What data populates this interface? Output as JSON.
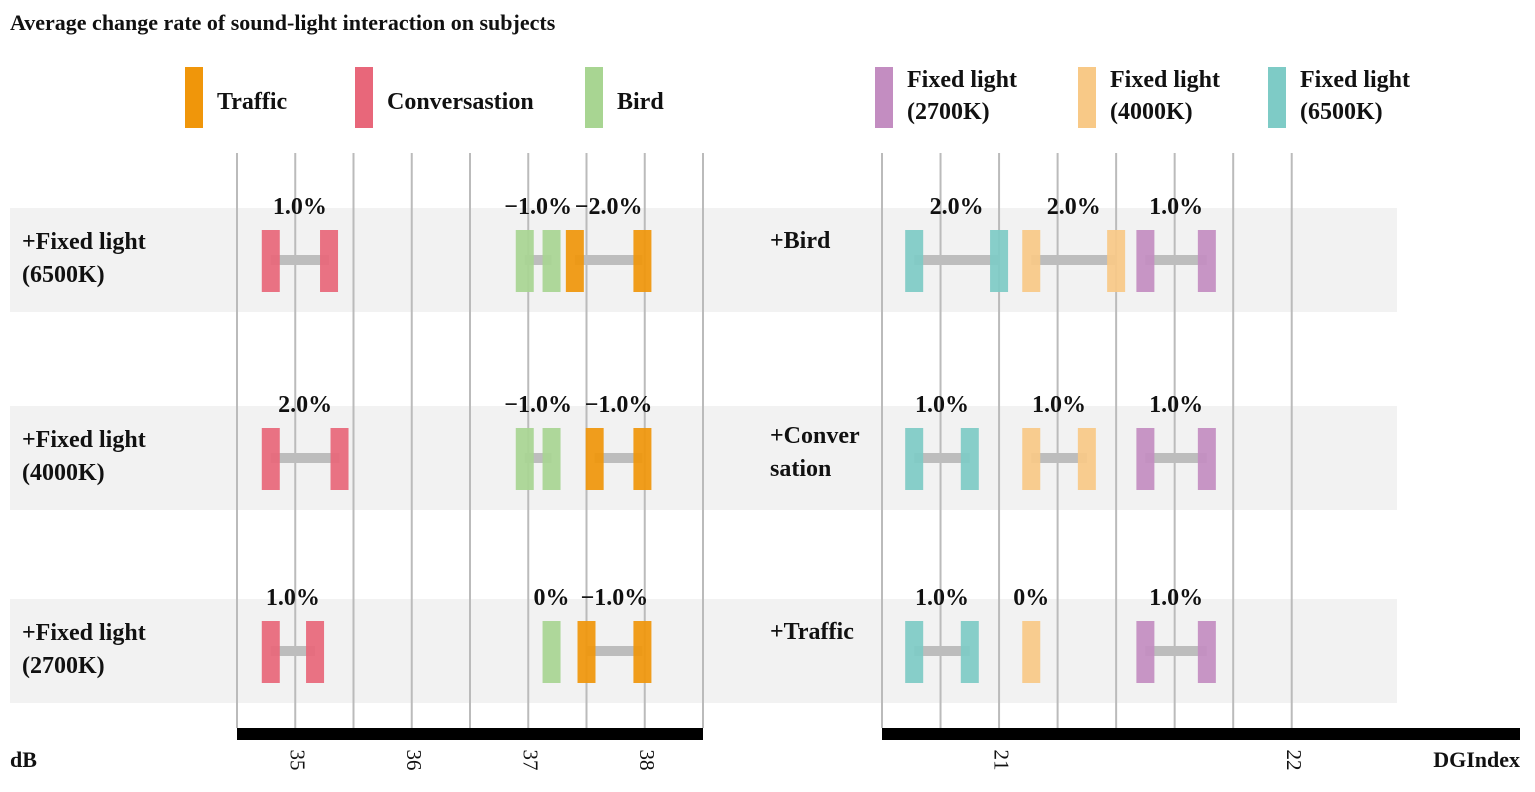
{
  "title": "Average change rate of sound-light interaction on subjects",
  "colors": {
    "Traffic": "#F0960A",
    "Conversastion": "#E8677A",
    "Bird": "#A8D592",
    "Fixed light (2700K)": "#C38DC1",
    "Fixed light (4000K)": "#F8C987",
    "Fixed light (6500K)": "#7ECBC6",
    "connector": "#BDBDBD",
    "band": "#F2F2F2",
    "grid": "#BBBBBB"
  },
  "chart_data": [
    {
      "type": "dumbbell",
      "xlabel": "dB",
      "xlim": [
        34.5,
        38.5
      ],
      "xticks": [
        35,
        36,
        37,
        38
      ],
      "grid_step": 0.5,
      "legend": [
        {
          "key": "Traffic",
          "lines": [
            "Traffic"
          ]
        },
        {
          "key": "Conversastion",
          "lines": [
            "Conversastion"
          ]
        },
        {
          "key": "Bird",
          "lines": [
            "Bird"
          ]
        }
      ],
      "rows": [
        {
          "label": [
            "+Fixed light",
            "(6500K)"
          ],
          "series": [
            {
              "name": "Conversastion",
              "values": [
                34.79,
                35.29
              ],
              "rate": "1.0%"
            },
            {
              "name": "Bird",
              "values": [
                36.97,
                37.2
              ],
              "rate": "−1.0%"
            },
            {
              "name": "Traffic",
              "values": [
                37.4,
                37.98
              ],
              "rate": "−2.0%"
            }
          ]
        },
        {
          "label": [
            "+Fixed light",
            "(4000K)"
          ],
          "series": [
            {
              "name": "Conversastion",
              "values": [
                34.79,
                35.38
              ],
              "rate": "2.0%"
            },
            {
              "name": "Bird",
              "values": [
                36.97,
                37.2
              ],
              "rate": "−1.0%"
            },
            {
              "name": "Traffic",
              "values": [
                37.57,
                37.98
              ],
              "rate": "−1.0%"
            }
          ]
        },
        {
          "label": [
            "+Fixed light",
            "(2700K)"
          ],
          "series": [
            {
              "name": "Conversastion",
              "values": [
                34.79,
                35.17
              ],
              "rate": "1.0%"
            },
            {
              "name": "Bird",
              "values": [
                37.2,
                37.2
              ],
              "rate": "0%"
            },
            {
              "name": "Traffic",
              "values": [
                37.5,
                37.98
              ],
              "rate": "−1.0%"
            }
          ]
        }
      ]
    },
    {
      "type": "dumbbell",
      "xlabel": "DGIndex",
      "xlim": [
        20.6,
        22.78
      ],
      "xticks": [
        21,
        22
      ],
      "grid_step": 0.2,
      "grid_max": 22.0,
      "legend": [
        {
          "key": "Fixed light (2700K)",
          "lines": [
            "Fixed light",
            "(2700K)"
          ]
        },
        {
          "key": "Fixed light (4000K)",
          "lines": [
            "Fixed light",
            "(4000K)"
          ]
        },
        {
          "key": "Fixed light (6500K)",
          "lines": [
            "Fixed light",
            "(6500K)"
          ]
        }
      ],
      "rows": [
        {
          "label": [
            "+Bird"
          ],
          "series": [
            {
              "name": "Fixed light (6500K)",
              "values": [
                20.71,
                21.0
              ],
              "rate": "2.0%"
            },
            {
              "name": "Fixed light (4000K)",
              "values": [
                21.11,
                21.4
              ],
              "rate": "2.0%"
            },
            {
              "name": "Fixed light (2700K)",
              "values": [
                21.5,
                21.71
              ],
              "rate": "1.0%"
            }
          ]
        },
        {
          "label": [
            "+Conver",
            "sation"
          ],
          "series": [
            {
              "name": "Fixed light (6500K)",
              "values": [
                20.71,
                20.9
              ],
              "rate": "1.0%"
            },
            {
              "name": "Fixed light (4000K)",
              "values": [
                21.11,
                21.3
              ],
              "rate": "1.0%"
            },
            {
              "name": "Fixed light (2700K)",
              "values": [
                21.5,
                21.71
              ],
              "rate": "1.0%"
            }
          ]
        },
        {
          "label": [
            "+Traffic"
          ],
          "series": [
            {
              "name": "Fixed light (6500K)",
              "values": [
                20.71,
                20.9
              ],
              "rate": "1.0%"
            },
            {
              "name": "Fixed light (4000K)",
              "values": [
                21.11,
                21.11
              ],
              "rate": "0%"
            },
            {
              "name": "Fixed light (2700K)",
              "values": [
                21.5,
                21.71
              ],
              "rate": "1.0%"
            }
          ]
        }
      ]
    }
  ]
}
